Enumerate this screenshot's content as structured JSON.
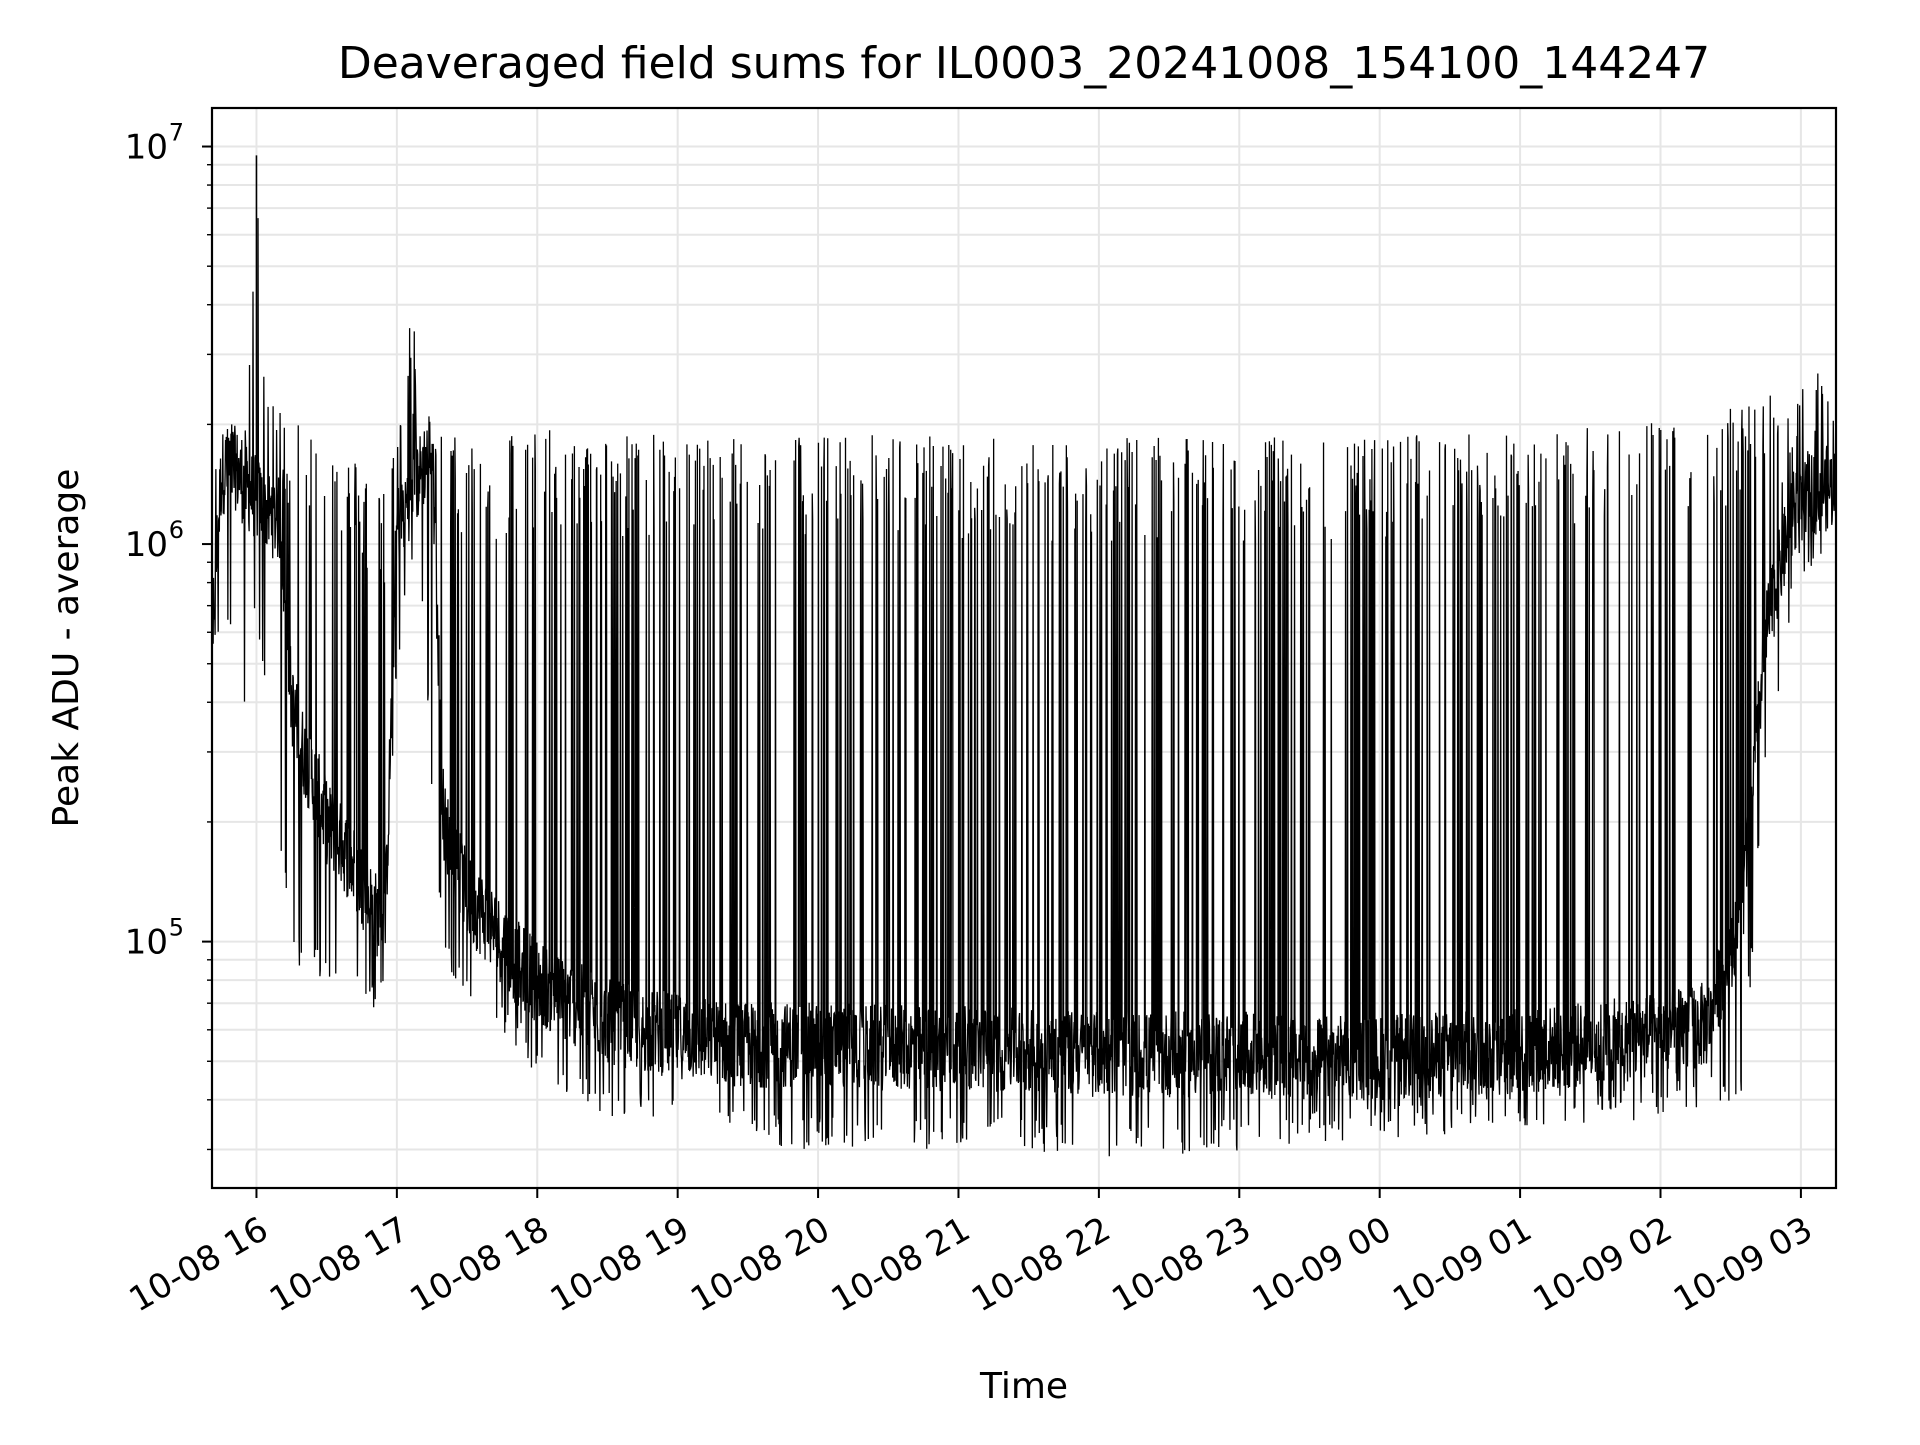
{
  "chart_data": {
    "type": "line",
    "title": "Deaveraged field sums for IL0003_20241008_154100_144247",
    "xlabel": "Time",
    "ylabel": "Peak ADU - average",
    "yscale": "log",
    "ylim": [
      24000,
      12500000
    ],
    "xlim": [
      "2024-10-08 15:41",
      "2024-10-09 03:15"
    ],
    "grid": "major and minor, light gray",
    "line_color": "#000000",
    "grid_color": "#e6e6e6",
    "y_ticks": [
      {
        "base": "10",
        "exp": "5",
        "value": 100000
      },
      {
        "base": "10",
        "exp": "6",
        "value": 1000000
      },
      {
        "base": "10",
        "exp": "7",
        "value": 10000000
      }
    ],
    "x_ticks": [
      {
        "label": "10-08 16",
        "value": "2024-10-08 16:00"
      },
      {
        "label": "10-08 17",
        "value": "2024-10-08 17:00"
      },
      {
        "label": "10-08 18",
        "value": "2024-10-08 18:00"
      },
      {
        "label": "10-08 19",
        "value": "2024-10-08 19:00"
      },
      {
        "label": "10-08 20",
        "value": "2024-10-08 20:00"
      },
      {
        "label": "10-08 21",
        "value": "2024-10-08 21:00"
      },
      {
        "label": "10-08 22",
        "value": "2024-10-08 22:00"
      },
      {
        "label": "10-08 23",
        "value": "2024-10-08 23:00"
      },
      {
        "label": "10-09 00",
        "value": "2024-10-09 00:00"
      },
      {
        "label": "10-09 01",
        "value": "2024-10-09 01:00"
      },
      {
        "label": "10-09 02",
        "value": "2024-10-09 02:00"
      },
      {
        "label": "10-09 03",
        "value": "2024-10-09 03:00"
      }
    ],
    "series": [
      {
        "x": [
          "2024-10-08 15:41",
          "2024-10-08 15:45",
          "2024-10-08 15:50",
          "2024-10-08 15:55",
          "2024-10-08 16:00",
          "2024-10-08 16:05",
          "2024-10-08 16:10",
          "2024-10-08 16:15",
          "2024-10-08 16:20",
          "2024-10-08 16:25",
          "2024-10-08 16:30",
          "2024-10-08 16:35",
          "2024-10-08 16:40",
          "2024-10-08 16:45",
          "2024-10-08 16:50",
          "2024-10-08 16:55",
          "2024-10-08 17:00",
          "2024-10-08 17:05",
          "2024-10-08 17:10",
          "2024-10-08 17:15",
          "2024-10-08 17:20",
          "2024-10-08 17:30",
          "2024-10-08 17:40",
          "2024-10-08 17:50",
          "2024-10-08 18:00",
          "2024-10-08 18:10",
          "2024-10-08 18:20",
          "2024-10-08 18:30",
          "2024-10-08 18:45",
          "2024-10-08 19:00",
          "2024-10-08 19:15",
          "2024-10-08 19:30",
          "2024-10-08 19:45",
          "2024-10-08 20:00",
          "2024-10-08 20:30",
          "2024-10-08 21:00",
          "2024-10-08 21:30",
          "2024-10-08 22:00",
          "2024-10-08 22:30",
          "2024-10-08 23:00",
          "2024-10-08 23:30",
          "2024-10-09 00:00",
          "2024-10-09 00:30",
          "2024-10-09 01:00",
          "2024-10-09 01:30",
          "2024-10-09 02:00",
          "2024-10-09 02:20",
          "2024-10-09 02:35",
          "2024-10-09 02:45",
          "2024-10-09 02:55",
          "2024-10-09 03:05",
          "2024-10-09 03:15"
        ],
        "baseline": [
          600000,
          1500000,
          1600000,
          1400000,
          1300000,
          1200000,
          1150000,
          400000,
          300000,
          250000,
          200000,
          180000,
          160000,
          140000,
          120000,
          110000,
          1100000,
          1300000,
          1500000,
          1800000,
          200000,
          130000,
          110000,
          90000,
          80000,
          72000,
          68000,
          63000,
          60000,
          58000,
          56000,
          55000,
          55000,
          55000,
          54000,
          54000,
          53000,
          52000,
          52000,
          52000,
          51000,
          51000,
          52000,
          53000,
          55000,
          58000,
          62000,
          120000,
          600000,
          1100000,
          1350000,
          1400000
        ],
        "peaks": [
          1700000,
          2600000,
          2000000,
          1900000,
          9500000,
          2200000,
          2300000,
          2200000,
          2100000,
          2000000,
          1900000,
          1800000,
          1700000,
          1600000,
          1500000,
          1400000,
          2000000,
          3800000,
          3300000,
          2100000,
          1900000,
          1900000,
          1800000,
          2000000,
          2000000,
          1900000,
          1850000,
          1900000,
          1900000,
          1900000,
          1900000,
          1900000,
          1900000,
          1900000,
          1900000,
          1880000,
          1850000,
          1850000,
          1850000,
          1850000,
          1860000,
          1880000,
          1900000,
          1950000,
          2000000,
          2050000,
          2200000,
          2300000,
          2400000,
          2300000,
          2950000,
          2100000
        ],
        "dips": [
          500000,
          700000,
          600000,
          400000,
          700000,
          450000,
          200000,
          100000,
          95000,
          90000,
          85000,
          82000,
          80000,
          78000,
          75000,
          90000,
          500000,
          800000,
          1000000,
          250000,
          100000,
          80000,
          70000,
          60000,
          50000,
          45000,
          42000,
          40000,
          38000,
          36000,
          35000,
          34000,
          33000,
          33000,
          33000,
          33000,
          33000,
          32000,
          32000,
          33000,
          34000,
          35000,
          36000,
          37000,
          38000,
          40000,
          42000,
          45000,
          300000,
          700000,
          900000,
          1000000
        ]
      }
    ]
  }
}
